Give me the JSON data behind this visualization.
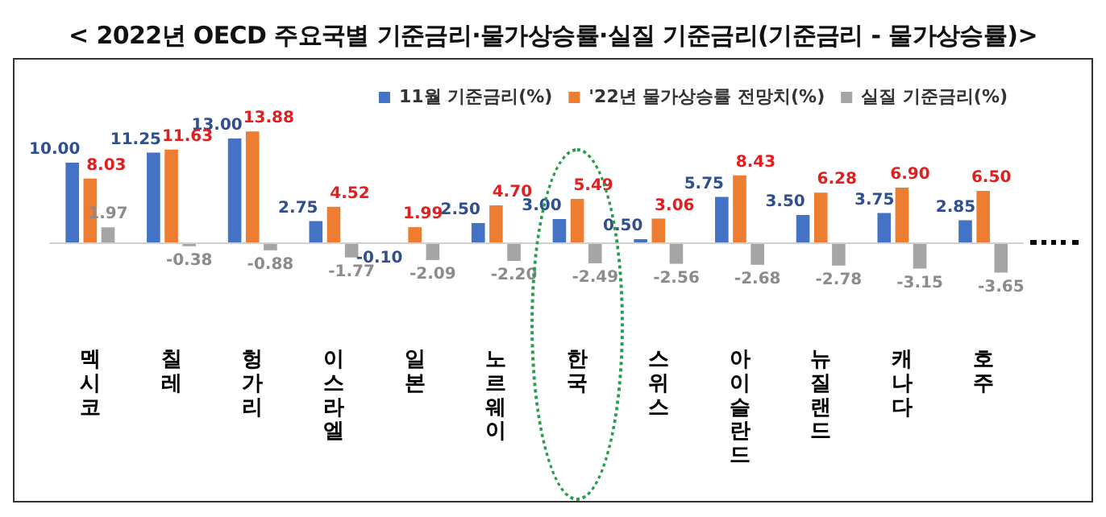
{
  "chart_data": {
    "type": "bar",
    "title": "< 2022년 OECD 주요국별 기준금리·물가상승률·실질 기준금리(기준금리 - 물가상승률)>",
    "categories": [
      "멕시코",
      "칠레",
      "헝가리",
      "이스라엘",
      "일본",
      "노르웨이",
      "한국",
      "스위스",
      "아이슬란드",
      "뉴질랜드",
      "캐나다",
      "호주"
    ],
    "series": [
      {
        "name": "11월 기준금리(%)",
        "color": "#4472c4",
        "values": [
          10.0,
          11.25,
          13.0,
          2.75,
          -0.1,
          2.5,
          3.0,
          0.5,
          5.75,
          3.5,
          3.75,
          2.85
        ],
        "value_labels": [
          "10.00",
          "11.25",
          "13.00",
          "2.75",
          "-0.10",
          "2.50",
          "3.00",
          "0.50",
          "5.75",
          "3.50",
          "3.75",
          "2.85"
        ]
      },
      {
        "name": "'22년 물가상승률 전망치(%)",
        "color": "#ed7d31",
        "values": [
          8.03,
          11.63,
          13.88,
          4.52,
          1.99,
          4.7,
          5.49,
          3.06,
          8.43,
          6.28,
          6.9,
          6.5
        ],
        "value_labels": [
          "8.03",
          "11.63",
          "13.88",
          "4.52",
          "1.99",
          "4.70",
          "5.49",
          "3.06",
          "8.43",
          "6.28",
          "6.90",
          "6.50"
        ]
      },
      {
        "name": "실질 기준금리(%)",
        "color": "#a5a5a5",
        "values": [
          1.97,
          -0.38,
          -0.88,
          -1.77,
          -2.09,
          -2.2,
          -2.49,
          -2.56,
          -2.68,
          -2.78,
          -3.15,
          -3.65
        ],
        "value_labels": [
          "1.97",
          "-0.38",
          "-0.88",
          "-1.77",
          "-2.09",
          "-2.20",
          "-2.49",
          "-2.56",
          "-2.68",
          "-2.78",
          "-3.15",
          "-3.65"
        ]
      }
    ],
    "legend": "top right",
    "grid": false
  }
}
